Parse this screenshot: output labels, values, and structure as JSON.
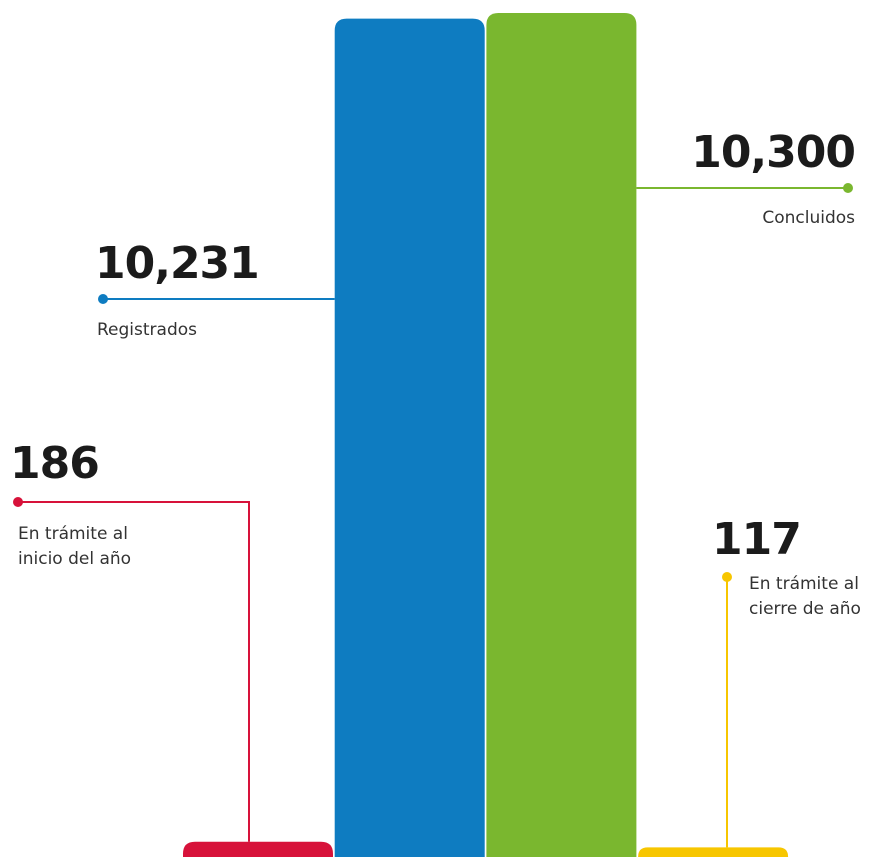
{
  "chart_data": {
    "type": "bar",
    "categories": [
      "En trámite al inicio del año",
      "Registrados",
      "Concluidos",
      "En trámite al cierre de año"
    ],
    "values": [
      186,
      10231,
      10300,
      117
    ],
    "value_labels": [
      "186",
      "10,231",
      "10,300",
      "117"
    ],
    "colors": [
      "#d7123a",
      "#0e7cc1",
      "#7ab72f",
      "#f7c600"
    ]
  }
}
